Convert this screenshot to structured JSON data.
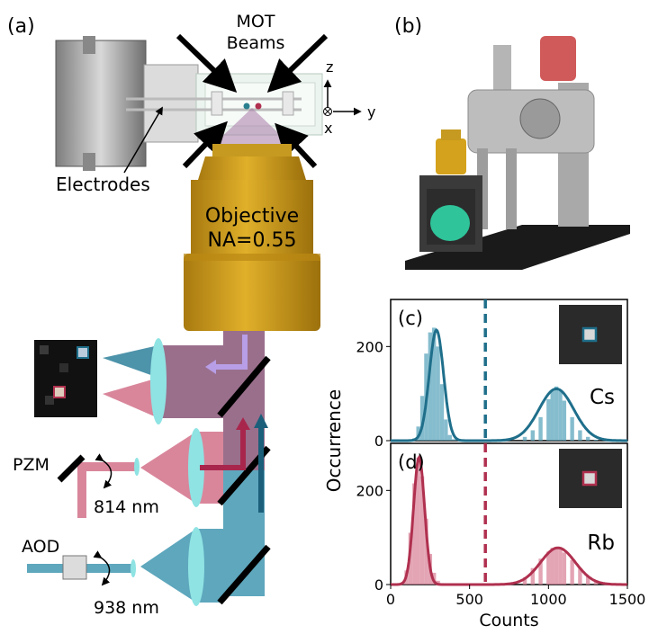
{
  "panel_a": {
    "label": "(a)",
    "mot_line1": "MOT",
    "mot_line2": "Beams",
    "axis_z": "z",
    "axis_y": "y",
    "axis_x": "x",
    "electrodes": "Electrodes",
    "objective_line1": "Objective",
    "objective_line2": "NA=0.55",
    "pzm": "PZM",
    "wavelength_814": "814 nm",
    "aod": "AOD",
    "wavelength_938": "938 nm"
  },
  "panel_b": {
    "label": "(b)"
  },
  "colors": {
    "cs_blue": "#1f6f8b",
    "rb_red": "#b0304f",
    "cs_fill": "#5ea7bd",
    "rb_fill": "#d9869b",
    "objective_gold": "#d4a21c",
    "lens_cyan": "#8fe3e3",
    "beam_purple": "#9a6f8c"
  },
  "chart_data": [
    {
      "type": "histogram",
      "panel": "(c)",
      "species": "Cs",
      "ylabel": "Occurrence",
      "xlim": [
        0,
        1500
      ],
      "ylim": [
        0,
        300
      ],
      "yticks": [
        0,
        200
      ],
      "threshold": 600,
      "x": [
        150,
        175,
        200,
        225,
        250,
        275,
        300,
        325,
        350,
        375,
        400,
        425,
        850,
        900,
        950,
        1000,
        1025,
        1050,
        1075,
        1100,
        1150,
        1200,
        1250,
        1300
      ],
      "values": [
        5,
        30,
        95,
        185,
        230,
        240,
        200,
        120,
        45,
        12,
        3,
        1,
        8,
        22,
        50,
        88,
        105,
        115,
        105,
        85,
        50,
        22,
        8,
        2
      ],
      "fit_peaks": [
        {
          "center": 290,
          "height": 235
        },
        {
          "center": 1050,
          "height": 110
        }
      ]
    },
    {
      "type": "histogram",
      "panel": "(d)",
      "species": "Rb",
      "xlabel": "Counts",
      "ylabel": "Occurrence",
      "xlim": [
        0,
        1500
      ],
      "ylim": [
        0,
        300
      ],
      "xticks": [
        0,
        500,
        1000,
        1500
      ],
      "yticks": [
        0,
        200
      ],
      "threshold": 600,
      "x": [
        75,
        100,
        125,
        150,
        175,
        200,
        225,
        250,
        275,
        300,
        325,
        350,
        850,
        900,
        950,
        1000,
        1025,
        1050,
        1075,
        1100,
        1150,
        1200,
        1250,
        1300,
        1350
      ],
      "values": [
        5,
        30,
        110,
        215,
        270,
        230,
        140,
        65,
        25,
        8,
        3,
        1,
        15,
        35,
        55,
        70,
        78,
        80,
        76,
        68,
        52,
        35,
        18,
        8,
        3
      ],
      "fit_peaks": [
        {
          "center": 180,
          "height": 270
        },
        {
          "center": 1060,
          "height": 78
        }
      ]
    }
  ]
}
